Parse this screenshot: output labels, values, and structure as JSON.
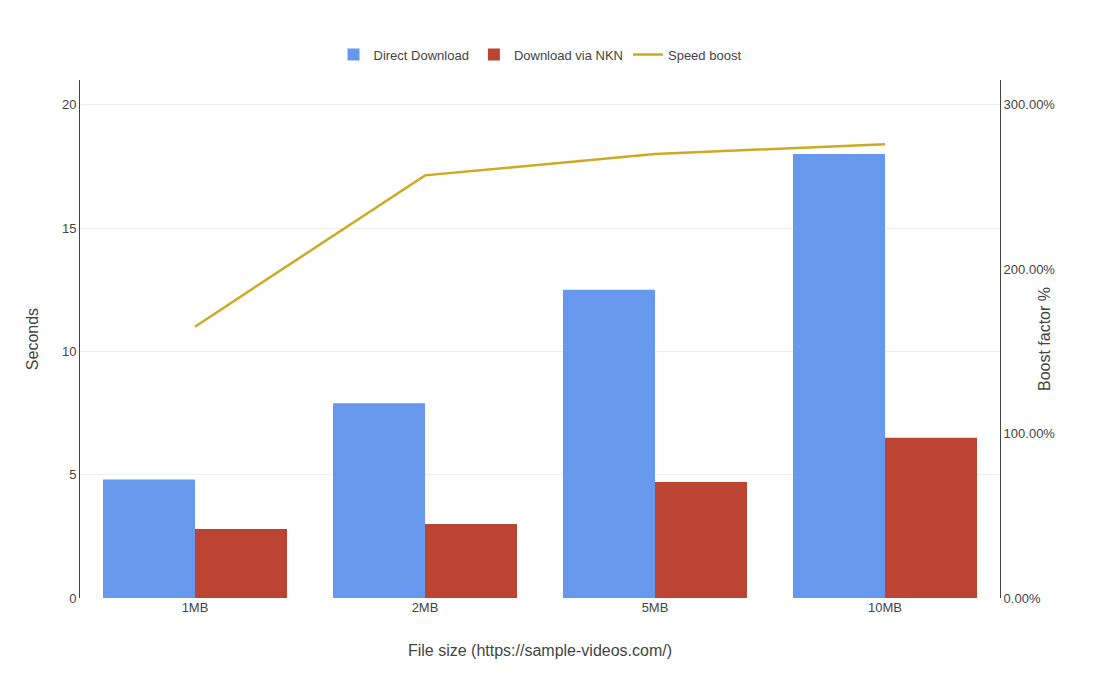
{
  "chart_data": {
    "type": "bar",
    "categories": [
      "1MB",
      "2MB",
      "5MB",
      "10MB"
    ],
    "xlabel": "File size (https://sample-videos.com/)",
    "ylabel": "Seconds",
    "y2label": "Boost factor %",
    "series": [
      {
        "name": "Direct Download",
        "type": "bar",
        "color": "#6699EE",
        "values": [
          4.8,
          7.9,
          12.5,
          18.0
        ]
      },
      {
        "name": "Download via NKN",
        "type": "bar",
        "color": "#BB4433",
        "values": [
          2.8,
          3.0,
          4.7,
          6.5
        ]
      },
      {
        "name": "Speed boost",
        "type": "line",
        "color": "#CCAA22",
        "line_style": "solid",
        "axis": "y2",
        "values": [
          1.65,
          2.57,
          2.7,
          2.76
        ]
      }
    ],
    "ylim": [
      0,
      21
    ],
    "yticks": [
      0,
      5,
      10,
      15,
      20
    ],
    "y2lim": [
      0,
      3.15
    ],
    "y2ticks": [
      {
        "value": 0.0,
        "label": "0.00%"
      },
      {
        "value": 1.0,
        "label": "100.00%"
      },
      {
        "value": 2.0,
        "label": "200.00%"
      },
      {
        "value": 3.0,
        "label": "300.00%"
      }
    ],
    "grid": true,
    "legend": "top"
  }
}
